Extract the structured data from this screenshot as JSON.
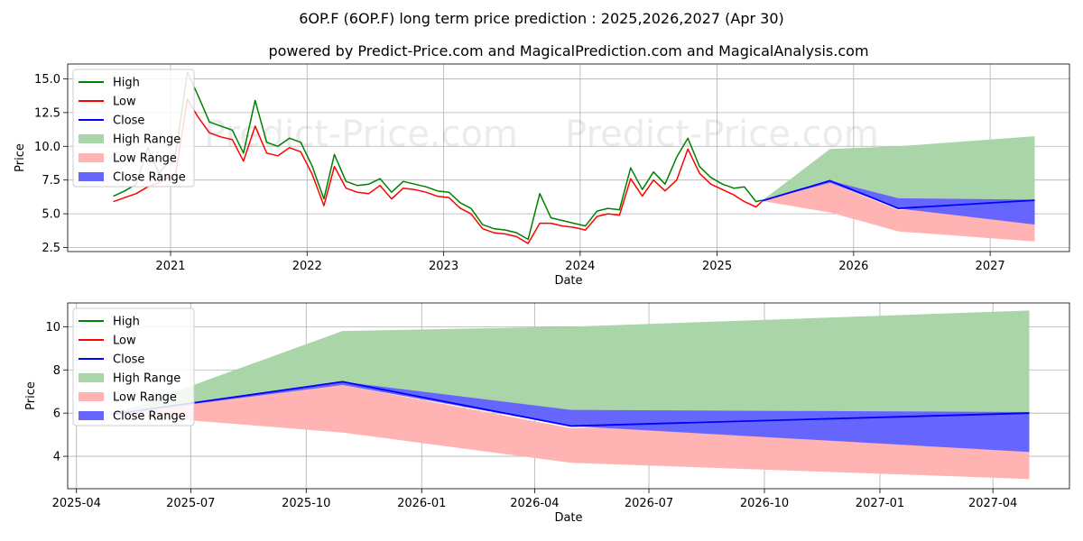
{
  "chart_title": "6OP.F (6OP.F) long term price prediction : 2025,2026,2027 (Apr 30)",
  "chart_subtitle": "powered by Predict-Price.com and MagicalPrediction.com and MagicalAnalysis.com",
  "watermark_text": "Predict-Price.com",
  "colors": {
    "high": "#008000",
    "low": "#ff0000",
    "close": "#0000ff",
    "high_range": "#a9d5a9",
    "low_range": "#ffb3b3",
    "close_range": "#6666ff"
  },
  "chart_data": [
    {
      "type": "line",
      "xlabel": "Date",
      "ylabel": "Price",
      "xlim": [
        "2020-04-01",
        "2027-08-01"
      ],
      "ylim": [
        2.2,
        16.1
      ],
      "yticks": [
        2.5,
        5.0,
        7.5,
        10.0,
        12.5,
        15.0
      ],
      "yticklabels": [
        "2.5",
        "5.0",
        "7.5",
        "10.0",
        "12.5",
        "15.0"
      ],
      "xticks": [
        "2021-01-01",
        "2022-01-01",
        "2023-01-01",
        "2024-01-01",
        "2025-01-01",
        "2026-01-01",
        "2027-01-01"
      ],
      "xticklabels": [
        "2021",
        "2022",
        "2023",
        "2024",
        "2025",
        "2026",
        "2027"
      ],
      "legend": [
        "High",
        "Low",
        "Close",
        "High Range",
        "Low Range",
        "Close Range"
      ],
      "legend_position": "top-left",
      "grid": true,
      "history": {
        "x": [
          "2020-08-01",
          "2020-09-01",
          "2020-10-01",
          "2020-11-01",
          "2020-12-01",
          "2021-01-15",
          "2021-02-15",
          "2021-03-15",
          "2021-04-15",
          "2021-05-15",
          "2021-06-15",
          "2021-07-15",
          "2021-08-15",
          "2021-09-15",
          "2021-10-15",
          "2021-11-15",
          "2021-12-15",
          "2022-01-15",
          "2022-02-15",
          "2022-03-15",
          "2022-04-15",
          "2022-05-15",
          "2022-06-15",
          "2022-07-15",
          "2022-08-15",
          "2022-09-15",
          "2022-10-15",
          "2022-11-15",
          "2022-12-15",
          "2023-01-15",
          "2023-02-15",
          "2023-03-15",
          "2023-04-15",
          "2023-05-15",
          "2023-06-15",
          "2023-07-15",
          "2023-08-15",
          "2023-09-15",
          "2023-10-15",
          "2023-11-15",
          "2023-12-15",
          "2024-01-15",
          "2024-02-15",
          "2024-03-15",
          "2024-04-15",
          "2024-05-15",
          "2024-06-15",
          "2024-07-15",
          "2024-08-15",
          "2024-09-15",
          "2024-10-15",
          "2024-11-15",
          "2024-12-15",
          "2025-01-15",
          "2025-02-15",
          "2025-03-15",
          "2025-04-15",
          "2025-04-30"
        ],
        "low": [
          5.9,
          6.2,
          6.5,
          7.0,
          7.3,
          8.0,
          13.5,
          12.2,
          11.0,
          10.7,
          10.5,
          8.9,
          11.5,
          9.5,
          9.3,
          9.9,
          9.6,
          7.9,
          5.6,
          8.5,
          6.9,
          6.6,
          6.5,
          7.1,
          6.1,
          6.9,
          6.8,
          6.6,
          6.3,
          6.2,
          5.4,
          5.0,
          3.9,
          3.6,
          3.5,
          3.3,
          2.8,
          4.3,
          4.3,
          4.1,
          4.0,
          3.8,
          4.8,
          5.0,
          4.9,
          7.6,
          6.3,
          7.5,
          6.7,
          7.5,
          9.8,
          8.0,
          7.2,
          6.8,
          6.4,
          5.9,
          5.5,
          5.9
        ],
        "high": [
          6.3,
          6.7,
          7.2,
          9.9,
          8.0,
          9.5,
          15.5,
          13.8,
          11.8,
          11.5,
          11.2,
          9.5,
          13.4,
          10.3,
          10.0,
          10.6,
          10.3,
          8.5,
          6.1,
          9.4,
          7.4,
          7.1,
          7.2,
          7.6,
          6.6,
          7.4,
          7.2,
          7.0,
          6.7,
          6.6,
          5.8,
          5.4,
          4.2,
          3.9,
          3.8,
          3.6,
          3.1,
          6.5,
          4.7,
          4.5,
          4.3,
          4.1,
          5.2,
          5.4,
          5.3,
          8.4,
          6.8,
          8.1,
          7.2,
          9.2,
          10.6,
          8.5,
          7.7,
          7.2,
          6.9,
          7.0,
          5.9,
          6.0
        ]
      },
      "forecast": {
        "x": [
          "2025-04-30",
          "2025-10-30",
          "2026-04-30",
          "2027-04-30"
        ],
        "close": [
          5.95,
          7.45,
          5.4,
          6.0
        ],
        "high_range": {
          "lower": [
            5.95,
            7.45,
            6.05,
            6.0
          ],
          "upper": [
            5.95,
            9.8,
            10.0,
            10.75
          ]
        },
        "low_range": {
          "lower": [
            5.95,
            5.1,
            3.7,
            2.95
          ],
          "upper": [
            5.95,
            7.3,
            5.3,
            5.9
          ]
        },
        "close_range": {
          "lower": [
            5.95,
            7.3,
            5.4,
            4.2
          ],
          "upper": [
            5.95,
            7.45,
            6.15,
            6.05
          ]
        }
      }
    },
    {
      "type": "area",
      "xlabel": "Date",
      "ylabel": "Price",
      "xlim": [
        "2025-03-25",
        "2027-06-01"
      ],
      "ylim": [
        2.5,
        11.1
      ],
      "yticks": [
        4,
        6,
        8,
        10
      ],
      "yticklabels": [
        "4",
        "6",
        "8",
        "10"
      ],
      "xticks": [
        "2025-04-01",
        "2025-07-01",
        "2025-10-01",
        "2026-01-01",
        "2026-04-01",
        "2026-07-01",
        "2026-10-01",
        "2027-01-01",
        "2027-04-01"
      ],
      "xticklabels": [
        "2025-04",
        "2025-07",
        "2025-10",
        "2026-01",
        "2026-04",
        "2026-07",
        "2026-10",
        "2027-01",
        "2027-04"
      ],
      "legend": [
        "High",
        "Low",
        "Close",
        "High Range",
        "Low Range",
        "Close Range"
      ],
      "legend_position": "top-left",
      "grid": true,
      "forecast": {
        "x": [
          "2025-04-30",
          "2025-10-30",
          "2026-04-30",
          "2027-04-30"
        ],
        "close": [
          5.95,
          7.45,
          5.4,
          6.0
        ],
        "high_range": {
          "lower": [
            5.95,
            7.45,
            6.05,
            6.0
          ],
          "upper": [
            5.95,
            9.8,
            10.0,
            10.75
          ]
        },
        "low_range": {
          "lower": [
            5.95,
            5.1,
            3.7,
            2.95
          ],
          "upper": [
            5.95,
            7.3,
            5.3,
            5.9
          ]
        },
        "close_range": {
          "lower": [
            5.95,
            7.3,
            5.4,
            4.2
          ],
          "upper": [
            5.95,
            7.45,
            6.15,
            6.05
          ]
        }
      }
    }
  ]
}
